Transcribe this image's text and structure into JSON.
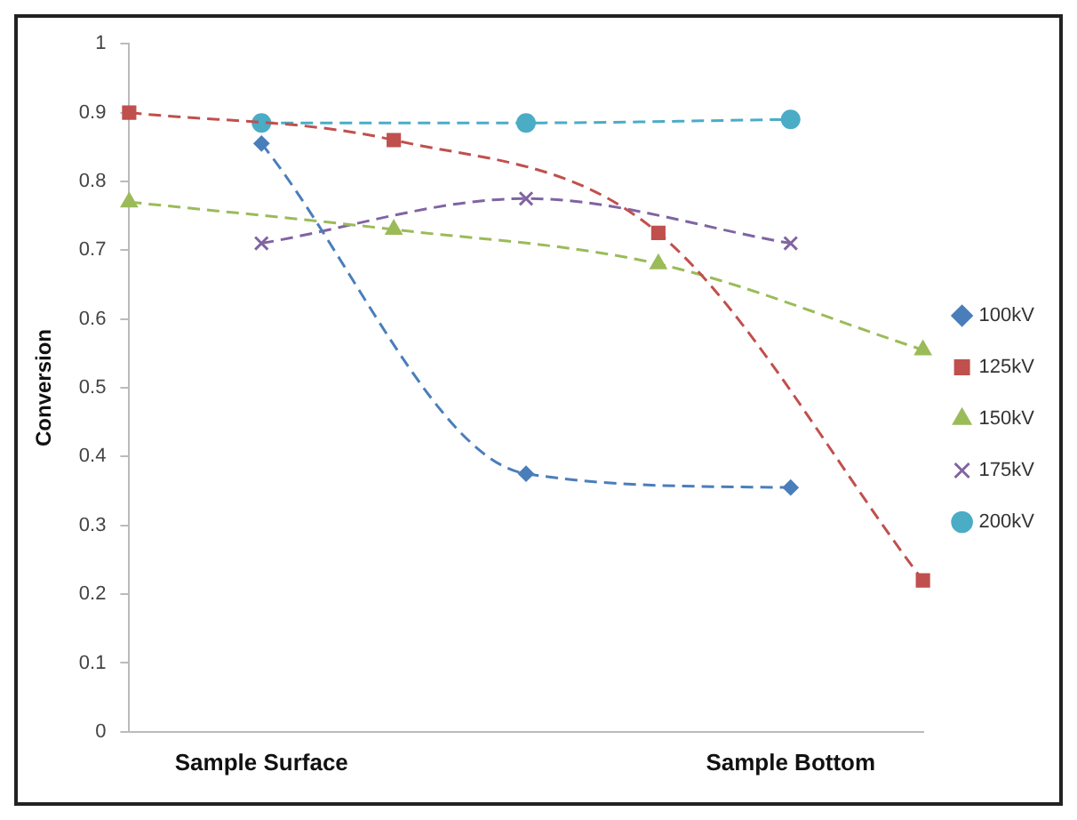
{
  "chart_data": {
    "type": "line",
    "ylabel": "Conversion",
    "categories": [
      null,
      "Sample Surface",
      null,
      null,
      null,
      "Sample Bottom",
      null
    ],
    "series": [
      {
        "name": "100kV",
        "color": "#4a7ebb",
        "marker": "diamond",
        "values": [
          null,
          0.855,
          null,
          0.375,
          null,
          0.355,
          null
        ]
      },
      {
        "name": "125kV",
        "color": "#c0504d",
        "marker": "square",
        "values": [
          0.9,
          null,
          0.86,
          null,
          0.725,
          null,
          0.22
        ]
      },
      {
        "name": "150kV",
        "color": "#9bbb59",
        "marker": "triangle",
        "values": [
          0.77,
          null,
          0.73,
          null,
          0.68,
          null,
          0.555
        ]
      },
      {
        "name": "175kV",
        "color": "#8064a2",
        "marker": "cross",
        "values": [
          null,
          0.71,
          null,
          0.775,
          null,
          0.71,
          null
        ]
      },
      {
        "name": "200kV",
        "color": "#4bacc6",
        "marker": "circle",
        "values": [
          null,
          0.885,
          null,
          0.885,
          null,
          0.89,
          null
        ]
      }
    ],
    "ylim": [
      0,
      1
    ],
    "yticks": [
      0,
      0.1,
      0.2,
      0.3,
      0.4,
      0.5,
      0.6,
      0.7,
      0.8,
      0.9,
      1
    ],
    "grid": false,
    "legend": "right",
    "line_style": "dashed"
  }
}
